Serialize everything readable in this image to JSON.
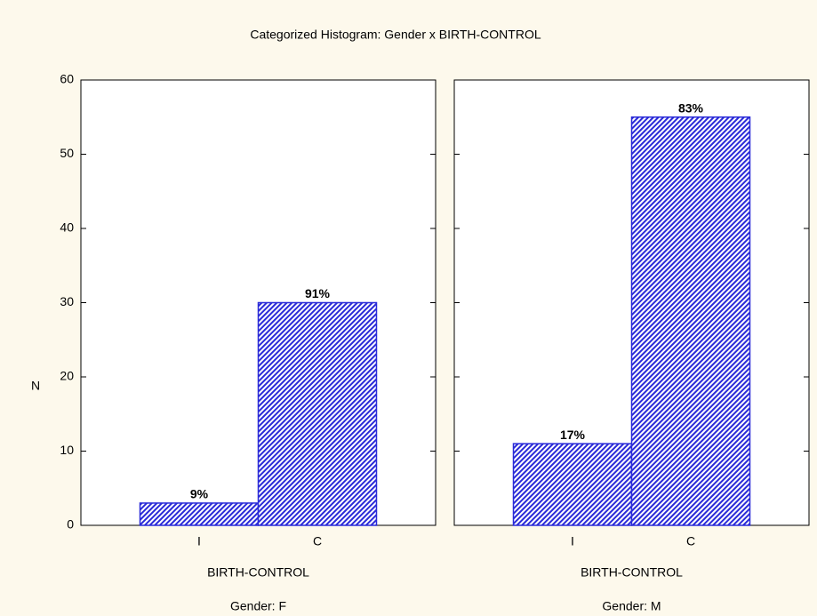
{
  "title": "Categorized Histogram: Gender x BIRTH-CONTROL",
  "chart_data": [
    {
      "type": "bar",
      "ylabel": "N",
      "xlabel": "BIRTH-CONTROL",
      "panel_label": "Gender: F",
      "categories": [
        "I",
        "C"
      ],
      "values": [
        3,
        30
      ],
      "value_labels": [
        "9%",
        "91%"
      ],
      "color": "#2a2ad8",
      "ylim": [
        0,
        60
      ],
      "yticks": [
        0,
        10,
        20,
        30,
        40,
        50,
        60
      ]
    },
    {
      "type": "bar",
      "xlabel": "BIRTH-CONTROL",
      "panel_label": "Gender: M",
      "categories": [
        "I",
        "C"
      ],
      "values": [
        11,
        55
      ],
      "value_labels": [
        "17%",
        "83%"
      ],
      "color": "#2a2ad8",
      "ylim": [
        0,
        60
      ],
      "yticks": [
        0,
        10,
        20,
        30,
        40,
        50,
        60
      ]
    }
  ]
}
